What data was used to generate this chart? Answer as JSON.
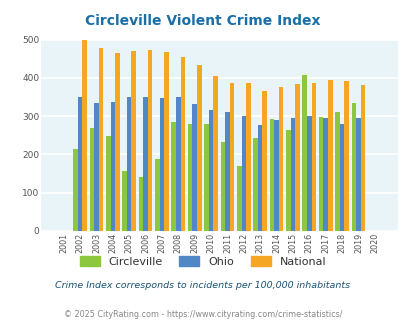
{
  "title": "Circleville Violent Crime Index",
  "years": [
    2001,
    2002,
    2003,
    2004,
    2005,
    2006,
    2007,
    2008,
    2009,
    2010,
    2011,
    2012,
    2013,
    2014,
    2015,
    2016,
    2017,
    2018,
    2019,
    2020
  ],
  "circleville": [
    0,
    215,
    270,
    248,
    157,
    142,
    187,
    285,
    280,
    280,
    233,
    170,
    242,
    293,
    265,
    408,
    298,
    312,
    335,
    0
  ],
  "ohio": [
    0,
    350,
    335,
    338,
    350,
    350,
    348,
    350,
    333,
    317,
    310,
    300,
    278,
    290,
    295,
    300,
    295,
    280,
    295,
    0
  ],
  "national": [
    0,
    498,
    478,
    465,
    470,
    473,
    467,
    455,
    433,
    405,
    387,
    387,
    367,
    375,
    383,
    387,
    395,
    393,
    381,
    0
  ],
  "circleville_color": "#8dc63f",
  "ohio_color": "#4f87c7",
  "national_color": "#f5a623",
  "bg_color": "#e8f4f8",
  "ylim": [
    0,
    500
  ],
  "yticks": [
    0,
    100,
    200,
    300,
    400,
    500
  ],
  "legend_labels": [
    "Circleville",
    "Ohio",
    "National"
  ],
  "footnote1": "Crime Index corresponds to incidents per 100,000 inhabitants",
  "footnote2": "© 2025 CityRating.com - https://www.cityrating.com/crime-statistics/",
  "bar_width": 0.28,
  "grid_color": "#ffffff",
  "title_color": "#1a6fa8",
  "footnote1_color": "#1a5276",
  "footnote2_color": "#888888"
}
